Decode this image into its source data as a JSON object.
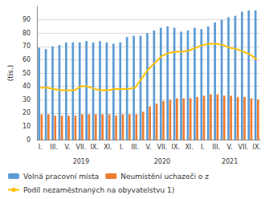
{
  "chart_data": {
    "type": "bar",
    "y_label": "(tis.)",
    "categories": [
      "I.",
      null,
      "III.",
      null,
      "V.",
      null,
      "VII.",
      null,
      "IX.",
      null,
      "XI.",
      null,
      "I.",
      null,
      "III.",
      null,
      "V.",
      null,
      "VII.",
      null,
      "IX.",
      null,
      "XI.",
      null,
      "I.",
      null,
      "III.",
      null,
      "V.",
      null,
      "VII.",
      null,
      "IX."
    ],
    "annotations": [
      "2019",
      "2020",
      "2021"
    ],
    "series": [
      {
        "name": "Volná pracovní místa",
        "type": "bar",
        "color": "#5b9bd5",
        "values": [
          69,
          68,
          70,
          71,
          73,
          73,
          73,
          74,
          73,
          74,
          73,
          72,
          73,
          77,
          78,
          78,
          80,
          82,
          84,
          85,
          84,
          81,
          82,
          84,
          83,
          85,
          88,
          90,
          92,
          93,
          96,
          97,
          97
        ]
      },
      {
        "name": "Neumístění uchazeči o z",
        "type": "bar",
        "color": "#ed7d31",
        "values": [
          19,
          19,
          18,
          18,
          18,
          18,
          19,
          19,
          19,
          19,
          19,
          18,
          19,
          19,
          19,
          21,
          25,
          27,
          29,
          30,
          31,
          31,
          31,
          32,
          33,
          34,
          34,
          33,
          33,
          32,
          32,
          31,
          30
        ]
      },
      {
        "name": "Podíl nezaměstnaných na obyvatelstvu 1)",
        "type": "line",
        "color": "#ffc000",
        "values": [
          39,
          39,
          38,
          37,
          37,
          37,
          40,
          40,
          38,
          37,
          37,
          38,
          38,
          38,
          39,
          46,
          53,
          58,
          63,
          65,
          66,
          66,
          67,
          69,
          71,
          72,
          72,
          71,
          69,
          68,
          66,
          64,
          60
        ]
      }
    ],
    "ylim": [
      0,
      100
    ],
    "yticks": [
      0,
      10,
      20,
      30,
      40,
      50,
      60,
      70,
      80,
      90
    ],
    "grid": true,
    "legend": "bottom"
  }
}
